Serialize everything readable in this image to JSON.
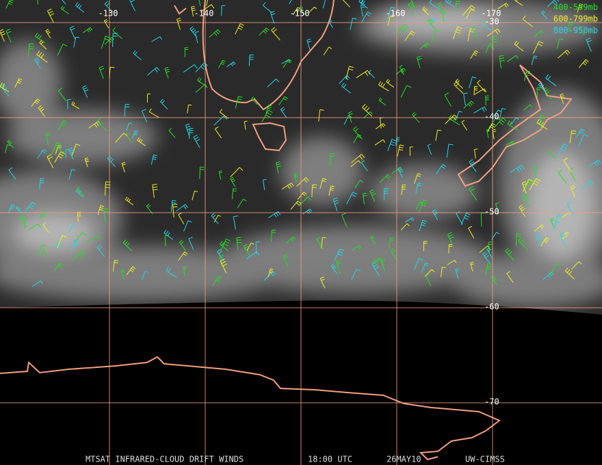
{
  "map": {
    "longitudes": [
      -130,
      -140,
      -150,
      -160,
      -170
    ],
    "latitudes": [
      -30,
      -40,
      -50,
      -60,
      -70
    ],
    "legend": [
      {
        "label": "400-599mb",
        "color": "#22e022"
      },
      {
        "label": "600-799mb",
        "color": "#f0f020"
      },
      {
        "label": "800-950mb",
        "color": "#20d8e8"
      }
    ],
    "footer": [
      "MTSAT INFRARED-CLOUD DRIFT WINDS",
      "18:00 UTC",
      "26MAY10",
      "UW-CIMSS"
    ]
  }
}
